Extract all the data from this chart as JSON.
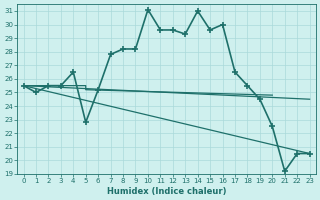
{
  "xlabel": "Humidex (Indice chaleur)",
  "xlim": [
    -0.5,
    23.5
  ],
  "ylim": [
    19,
    31.5
  ],
  "yticks": [
    19,
    20,
    21,
    22,
    23,
    24,
    25,
    26,
    27,
    28,
    29,
    30,
    31
  ],
  "xticks": [
    0,
    1,
    2,
    3,
    4,
    5,
    6,
    7,
    8,
    9,
    10,
    11,
    12,
    13,
    14,
    15,
    16,
    17,
    18,
    19,
    20,
    21,
    22,
    23
  ],
  "bg_color": "#cff0ee",
  "line_color": "#1e706a",
  "grid_color": "#aadada",
  "main_line": {
    "x": [
      0,
      1,
      2,
      3,
      4,
      5,
      6,
      7,
      8,
      9,
      10,
      11,
      12,
      13,
      14,
      15,
      16,
      17,
      18,
      19,
      20,
      21,
      22,
      23
    ],
    "y": [
      25.5,
      25.0,
      25.5,
      25.5,
      26.5,
      22.8,
      25.2,
      27.8,
      28.2,
      28.2,
      31.1,
      29.6,
      29.6,
      29.3,
      31.0,
      29.6,
      30.0,
      26.5,
      25.5,
      24.5,
      22.5,
      19.2,
      20.5,
      20.5
    ],
    "marker": "+",
    "markersize": 5,
    "linewidth": 1.2,
    "markeredgewidth": 1.2
  },
  "flat_lines": [
    {
      "x": [
        0,
        5,
        5,
        20
      ],
      "y": [
        25.5,
        25.5,
        25.2,
        24.8
      ],
      "linewidth": 0.9
    },
    {
      "x": [
        0,
        23
      ],
      "y": [
        25.5,
        24.5
      ],
      "linewidth": 0.9
    },
    {
      "x": [
        0,
        23
      ],
      "y": [
        25.5,
        20.5
      ],
      "linewidth": 0.9
    }
  ]
}
